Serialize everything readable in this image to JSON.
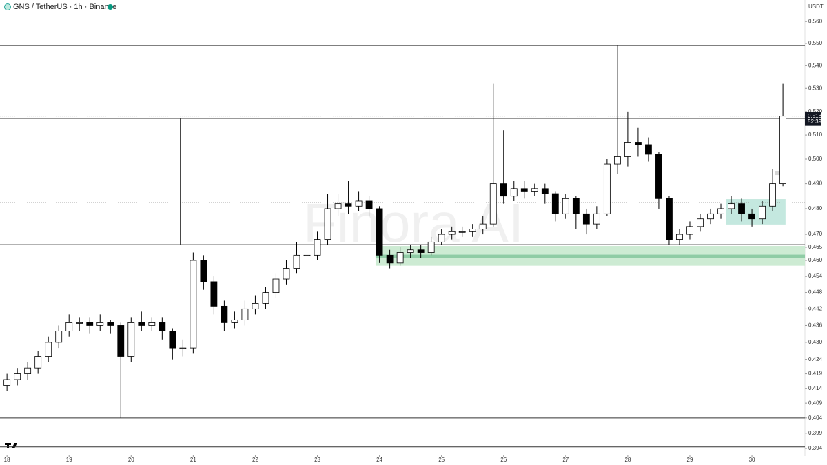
{
  "chart_data": {
    "type": "candlestick",
    "title": "GNS / TetherUS · 1h · Binance",
    "watermark": "Finora AI",
    "currency": "USDT",
    "log_scale": true,
    "up_color": "#ffffff",
    "down_color": "#000000",
    "x": [
      0,
      4,
      8,
      12,
      16,
      20,
      24,
      28,
      32,
      36,
      40,
      44,
      48,
      52,
      56,
      60,
      64,
      68,
      72,
      76,
      80,
      84,
      88,
      92,
      96,
      100,
      104,
      108,
      112,
      116,
      120,
      124,
      128,
      132,
      136,
      140,
      144,
      148,
      152,
      156,
      160,
      164,
      168,
      172,
      176,
      180,
      184,
      188,
      192,
      196,
      200,
      204,
      208,
      212,
      216,
      220,
      224,
      228,
      232,
      236,
      240,
      244,
      248,
      252,
      256,
      260,
      264,
      268,
      272,
      276,
      280,
      284,
      288,
      292,
      296,
      300
    ],
    "open": [
      0.415,
      0.417,
      0.419,
      0.421,
      0.425,
      0.43,
      0.434,
      0.437,
      0.437,
      0.436,
      0.437,
      0.436,
      0.425,
      0.437,
      0.436,
      0.437,
      0.434,
      0.428,
      0.428,
      0.46,
      0.452,
      0.443,
      0.437,
      0.438,
      0.442,
      0.444,
      0.448,
      0.453,
      0.457,
      0.462,
      0.462,
      0.468,
      0.48,
      0.482,
      0.481,
      0.483,
      0.48,
      0.462,
      0.459,
      0.463,
      0.464,
      0.463,
      0.467,
      0.47,
      0.471,
      0.471,
      0.472,
      0.474,
      0.49,
      0.485,
      0.488,
      0.487,
      0.488,
      0.486,
      0.478,
      0.484,
      0.478,
      0.474,
      0.478,
      0.498,
      0.501,
      0.507,
      0.506,
      0.502,
      0.484,
      0.468,
      0.47,
      0.473,
      0.476,
      0.478,
      0.48,
      0.482,
      0.478,
      0.476,
      0.481,
      0.49
    ],
    "high": [
      0.419,
      0.421,
      0.423,
      0.427,
      0.432,
      0.436,
      0.44,
      0.439,
      0.439,
      0.44,
      0.438,
      0.437,
      0.439,
      0.441,
      0.439,
      0.439,
      0.435,
      0.431,
      0.463,
      0.462,
      0.454,
      0.445,
      0.441,
      0.445,
      0.447,
      0.45,
      0.455,
      0.46,
      0.467,
      0.465,
      0.471,
      0.486,
      0.486,
      0.491,
      0.487,
      0.485,
      0.481,
      0.464,
      0.465,
      0.466,
      0.466,
      0.469,
      0.472,
      0.473,
      0.473,
      0.474,
      0.477,
      0.532,
      0.512,
      0.491,
      0.491,
      0.49,
      0.49,
      0.487,
      0.486,
      0.485,
      0.48,
      0.481,
      0.5,
      0.549,
      0.52,
      0.513,
      0.509,
      0.503,
      0.485,
      0.472,
      0.475,
      0.478,
      0.48,
      0.482,
      0.485,
      0.484,
      0.48,
      0.483,
      0.496,
      0.532
    ],
    "low": [
      0.413,
      0.415,
      0.417,
      0.419,
      0.423,
      0.428,
      0.432,
      0.434,
      0.433,
      0.434,
      0.433,
      0.404,
      0.423,
      0.434,
      0.434,
      0.431,
      0.424,
      0.425,
      0.426,
      0.449,
      0.44,
      0.434,
      0.435,
      0.436,
      0.44,
      0.442,
      0.446,
      0.451,
      0.455,
      0.459,
      0.46,
      0.466,
      0.477,
      0.478,
      0.479,
      0.477,
      0.459,
      0.457,
      0.458,
      0.461,
      0.461,
      0.462,
      0.466,
      0.468,
      0.469,
      0.469,
      0.47,
      0.473,
      0.482,
      0.483,
      0.484,
      0.485,
      0.482,
      0.475,
      0.476,
      0.472,
      0.47,
      0.472,
      0.477,
      0.494,
      0.497,
      0.501,
      0.499,
      0.48,
      0.466,
      0.466,
      0.468,
      0.471,
      0.474,
      0.476,
      0.478,
      0.475,
      0.473,
      0.474,
      0.479,
      0.489
    ],
    "close": [
      0.417,
      0.419,
      0.421,
      0.425,
      0.43,
      0.434,
      0.437,
      0.437,
      0.436,
      0.437,
      0.436,
      0.425,
      0.437,
      0.436,
      0.437,
      0.434,
      0.428,
      0.428,
      0.46,
      0.452,
      0.443,
      0.437,
      0.438,
      0.442,
      0.444,
      0.448,
      0.453,
      0.457,
      0.462,
      0.462,
      0.468,
      0.48,
      0.482,
      0.481,
      0.483,
      0.48,
      0.462,
      0.459,
      0.463,
      0.464,
      0.463,
      0.467,
      0.47,
      0.471,
      0.471,
      0.472,
      0.474,
      0.49,
      0.485,
      0.488,
      0.487,
      0.488,
      0.486,
      0.478,
      0.484,
      0.478,
      0.474,
      0.478,
      0.498,
      0.501,
      0.507,
      0.506,
      0.502,
      0.484,
      0.468,
      0.47,
      0.473,
      0.476,
      0.478,
      0.48,
      0.482,
      0.478,
      0.476,
      0.481,
      0.49,
      0.518
    ],
    "xlim": [
      -2.7,
      308.5
    ],
    "xticks": [
      {
        "value": 0,
        "label": "18"
      },
      {
        "value": 24,
        "label": "19"
      },
      {
        "value": 48,
        "label": "20"
      },
      {
        "value": 72,
        "label": "21"
      },
      {
        "value": 96,
        "label": "22"
      },
      {
        "value": 120,
        "label": "23"
      },
      {
        "value": 144,
        "label": "24"
      },
      {
        "value": 168,
        "label": "25"
      },
      {
        "value": 192,
        "label": "26"
      },
      {
        "value": 216,
        "label": "27"
      },
      {
        "value": 240,
        "label": "28"
      },
      {
        "value": 264,
        "label": "29"
      },
      {
        "value": 288,
        "label": "30"
      }
    ],
    "ylim": [
      0.392,
      0.57
    ],
    "yticks": [
      {
        "value": 0.56,
        "label": "0.560"
      },
      {
        "value": 0.55,
        "label": "0.550"
      },
      {
        "value": 0.54,
        "label": "0.540"
      },
      {
        "value": 0.53,
        "label": "0.530"
      },
      {
        "value": 0.52,
        "label": "0.520"
      },
      {
        "value": 0.51,
        "label": "0.510"
      },
      {
        "value": 0.5,
        "label": "0.500"
      },
      {
        "value": 0.49,
        "label": "0.490"
      },
      {
        "value": 0.48,
        "label": "0.480"
      },
      {
        "value": 0.47,
        "label": "0.470"
      },
      0.465,
      {
        "value": 0.46,
        "label": "0.460"
      },
      0.454,
      0.448,
      0.442,
      0.436,
      {
        "value": 0.43,
        "label": "0.430"
      },
      0.424,
      0.419,
      0.414,
      0.409,
      0.404,
      0.399,
      0.394
    ],
    "levels": [
      {
        "value": 0.549,
        "style": "solid"
      },
      {
        "value": 0.518,
        "style": "dotted"
      },
      {
        "value": 0.517,
        "style": "solid"
      },
      {
        "value": 0.4824,
        "style": "dotted"
      },
      {
        "value": 0.466,
        "style": "solid"
      },
      {
        "value": 0.404,
        "style": "solid"
      },
      {
        "value": 0.3945,
        "style": "solid"
      }
    ],
    "segments": [
      {
        "x": 67,
        "from": 0.466,
        "to": 0.517
      }
    ],
    "zones": [
      {
        "from": 142.5,
        "to": 308.5,
        "top": 0.4655,
        "bottom": 0.458,
        "color": "#cdebd3"
      },
      {
        "from": 142.5,
        "to": 308.5,
        "top": 0.4622,
        "bottom": 0.4608,
        "color": "#8fcca5"
      },
      {
        "from": 277.9,
        "to": 301,
        "top": 0.4838,
        "bottom": 0.4738,
        "color": "#c4e8df"
      },
      {
        "from": 297,
        "to": 301,
        "top": 0.4952,
        "bottom": 0.4935,
        "color": "#d6d6d6"
      }
    ],
    "last_price": 0.518,
    "countdown": "52:39"
  }
}
